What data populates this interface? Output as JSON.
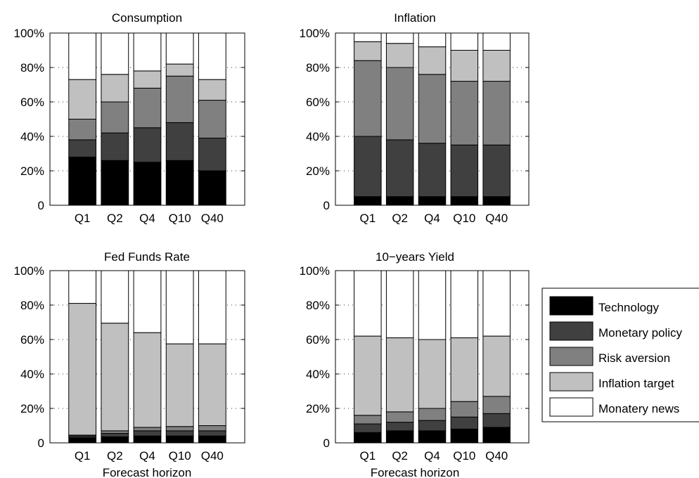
{
  "colors": {
    "technology": "#000000",
    "monetary_policy": "#404040",
    "risk_aversion": "#808080",
    "inflation_target": "#c0c0c0",
    "monatery_news": "#ffffff"
  },
  "legend": {
    "placement": "right",
    "items": [
      "Technology",
      "Monetary policy",
      "Risk aversion",
      "Inflation target",
      "Monatery news"
    ]
  },
  "chart_data": [
    {
      "type": "bar",
      "stacked": true,
      "title": "Consumption",
      "xlabel": "",
      "categories": [
        "Q1",
        "Q2",
        "Q4",
        "Q10",
        "Q40"
      ],
      "ylim": [
        0,
        100
      ],
      "yticks": [
        "0",
        "20%",
        "40%",
        "60%",
        "80%",
        "100%"
      ],
      "grid": true,
      "series": [
        {
          "name": "Technology",
          "values": [
            28,
            26,
            25,
            26,
            20
          ]
        },
        {
          "name": "Monetary policy",
          "values": [
            10,
            16,
            20,
            22,
            19
          ]
        },
        {
          "name": "Risk aversion",
          "values": [
            12,
            18,
            23,
            27,
            22
          ]
        },
        {
          "name": "Inflation target",
          "values": [
            23,
            16,
            10,
            7,
            12
          ]
        },
        {
          "name": "Monatery news",
          "values": [
            27,
            24,
            22,
            18,
            27
          ]
        }
      ]
    },
    {
      "type": "bar",
      "stacked": true,
      "title": "Inflation",
      "xlabel": "",
      "categories": [
        "Q1",
        "Q2",
        "Q4",
        "Q10",
        "Q40"
      ],
      "ylim": [
        0,
        100
      ],
      "yticks": [
        "0",
        "20%",
        "40%",
        "60%",
        "80%",
        "100%"
      ],
      "grid": true,
      "series": [
        {
          "name": "Technology",
          "values": [
            5,
            5,
            5,
            5,
            5
          ]
        },
        {
          "name": "Monetary policy",
          "values": [
            35,
            33,
            31,
            30,
            30
          ]
        },
        {
          "name": "Risk aversion",
          "values": [
            44,
            42,
            40,
            37,
            37
          ]
        },
        {
          "name": "Inflation target",
          "values": [
            11,
            14,
            16,
            18,
            18
          ]
        },
        {
          "name": "Monatery news",
          "values": [
            5,
            6,
            8,
            10,
            10
          ]
        }
      ]
    },
    {
      "type": "bar",
      "stacked": true,
      "title": "Fed Funds Rate",
      "xlabel": "Forecast horizon",
      "categories": [
        "Q1",
        "Q2",
        "Q4",
        "Q10",
        "Q40"
      ],
      "ylim": [
        0,
        100
      ],
      "yticks": [
        "0",
        "20%",
        "40%",
        "60%",
        "80%",
        "100%"
      ],
      "grid": true,
      "series": [
        {
          "name": "Technology",
          "values": [
            3,
            3.5,
            4,
            4,
            4
          ]
        },
        {
          "name": "Monetary policy",
          "values": [
            1,
            2,
            3,
            3,
            3
          ]
        },
        {
          "name": "Risk aversion",
          "values": [
            0.5,
            1.5,
            2,
            2.5,
            3
          ]
        },
        {
          "name": "Inflation target",
          "values": [
            76.5,
            62.5,
            55,
            48,
            47.5
          ]
        },
        {
          "name": "Monatery news",
          "values": [
            19,
            30.5,
            36,
            42.5,
            42.5
          ]
        }
      ]
    },
    {
      "type": "bar",
      "stacked": true,
      "title": "10−years Yield",
      "xlabel": "Forecast horizon",
      "categories": [
        "Q1",
        "Q2",
        "Q4",
        "Q10",
        "Q40"
      ],
      "ylim": [
        0,
        100
      ],
      "yticks": [
        "0",
        "20%",
        "40%",
        "60%",
        "80%",
        "100%"
      ],
      "grid": true,
      "series": [
        {
          "name": "Technology",
          "values": [
            6,
            7,
            7,
            8,
            9
          ]
        },
        {
          "name": "Monetary policy",
          "values": [
            5,
            5,
            6,
            7,
            8
          ]
        },
        {
          "name": "Risk aversion",
          "values": [
            5,
            6,
            7,
            9,
            10
          ]
        },
        {
          "name": "Inflation target",
          "values": [
            46,
            43,
            40,
            37,
            35
          ]
        },
        {
          "name": "Monatery news",
          "values": [
            38,
            39,
            40,
            39,
            38
          ]
        }
      ]
    }
  ]
}
